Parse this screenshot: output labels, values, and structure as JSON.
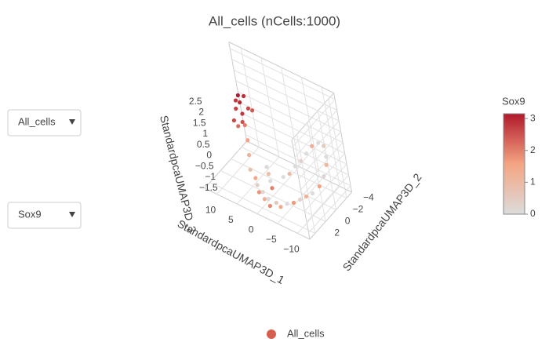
{
  "chart_data": {
    "type": "scatter3d",
    "title": "All_cells (nCells:1000)",
    "xlabel": "StandardpcaUMAP3D_1",
    "ylabel": "StandardpcaUMAP3D_2",
    "zlabel": "StandardpcaUMAP3D_3",
    "xlim": [
      -13,
      13
    ],
    "ylim": [
      -5,
      3
    ],
    "zlim": [
      -1.8,
      2.8
    ],
    "xticks": [
      {
        "value": -10,
        "label": "−10"
      },
      {
        "value": -5,
        "label": "−5"
      },
      0,
      5,
      10
    ],
    "yticks": [
      {
        "value": -4,
        "label": "−4"
      },
      {
        "value": -2,
        "label": "−2"
      },
      0,
      2
    ],
    "zticks": [
      {
        "value": -1.5,
        "label": "−1.5"
      },
      {
        "value": -1,
        "label": "−1"
      },
      {
        "value": -0.5,
        "label": "−0.5"
      },
      0,
      0.5,
      1,
      1.5,
      2,
      2.5
    ],
    "grid": true,
    "series": [
      {
        "name": "All_cells",
        "color": "#d6604d",
        "x": [
          6,
          7,
          5.5,
          6.5,
          7.5,
          5,
          6,
          8,
          6.8,
          5.2,
          7.2,
          6.2,
          5,
          4.5,
          4,
          3,
          2,
          1,
          0,
          -1,
          -2,
          -3,
          -4,
          -5,
          -6,
          -7,
          -8,
          -9,
          -10,
          -10.5,
          -10.5,
          -10,
          -9.5,
          -9,
          -8,
          -7,
          -6,
          -5,
          -4,
          -3,
          -2,
          1,
          0,
          -1,
          2
        ],
        "y": [
          -1,
          -1.5,
          -0.5,
          -2,
          -1,
          -1.5,
          0,
          -2,
          -0.8,
          -2.2,
          -0.2,
          -1.2,
          -0.5,
          0,
          0.5,
          0.5,
          1,
          1.5,
          1.5,
          2,
          2,
          2.5,
          2,
          2,
          1.5,
          1,
          0.5,
          0,
          -0.5,
          -1.5,
          -2.5,
          -3.5,
          -4,
          -4.2,
          -4,
          -3.5,
          -3,
          -2.5,
          -2,
          -1.5,
          -1,
          -0.5,
          0,
          0.5,
          -1
        ],
        "z": [
          1.2,
          1.5,
          1.0,
          1.7,
          1.3,
          1.4,
          0.9,
          1.6,
          1.8,
          1.1,
          1.0,
          0.6,
          0.2,
          -0.3,
          -0.8,
          -1.1,
          -1.2,
          -1.3,
          -1.2,
          -1.3,
          -1.2,
          -1.3,
          -1.2,
          -1.3,
          -1.2,
          -1.2,
          -1.1,
          -1.0,
          -0.9,
          -0.8,
          -0.6,
          -0.4,
          -0.2,
          0.2,
          0.3,
          0.2,
          -0.1,
          -0.4,
          -0.6,
          -0.9,
          -1.0,
          -1.0,
          -1.1,
          -1.2,
          -0.9
        ],
        "values": [
          2.8,
          3.0,
          2.5,
          2.9,
          2.7,
          2.6,
          2.2,
          3.1,
          2.8,
          2.4,
          2.6,
          2.0,
          1.6,
          1.2,
          0.8,
          1.5,
          0.4,
          1.8,
          0.2,
          1.3,
          0,
          1.9,
          0.6,
          1.4,
          0,
          1.7,
          0.3,
          1.2,
          0,
          1.6,
          0.2,
          1.1,
          0,
          0.5,
          0,
          1.3,
          0,
          0.3,
          0,
          1.0,
          0,
          0.9,
          0,
          2.0,
          0.1
        ]
      }
    ],
    "colorbar": {
      "title": "Sox9",
      "lim": [
        0,
        3.15
      ],
      "ticks": [
        0,
        1,
        2,
        3
      ],
      "colorscale": [
        "#dcdcdc",
        "#f4a582",
        "#b2182b"
      ]
    },
    "dropdowns": [
      "All_cells",
      "Sox9"
    ]
  }
}
